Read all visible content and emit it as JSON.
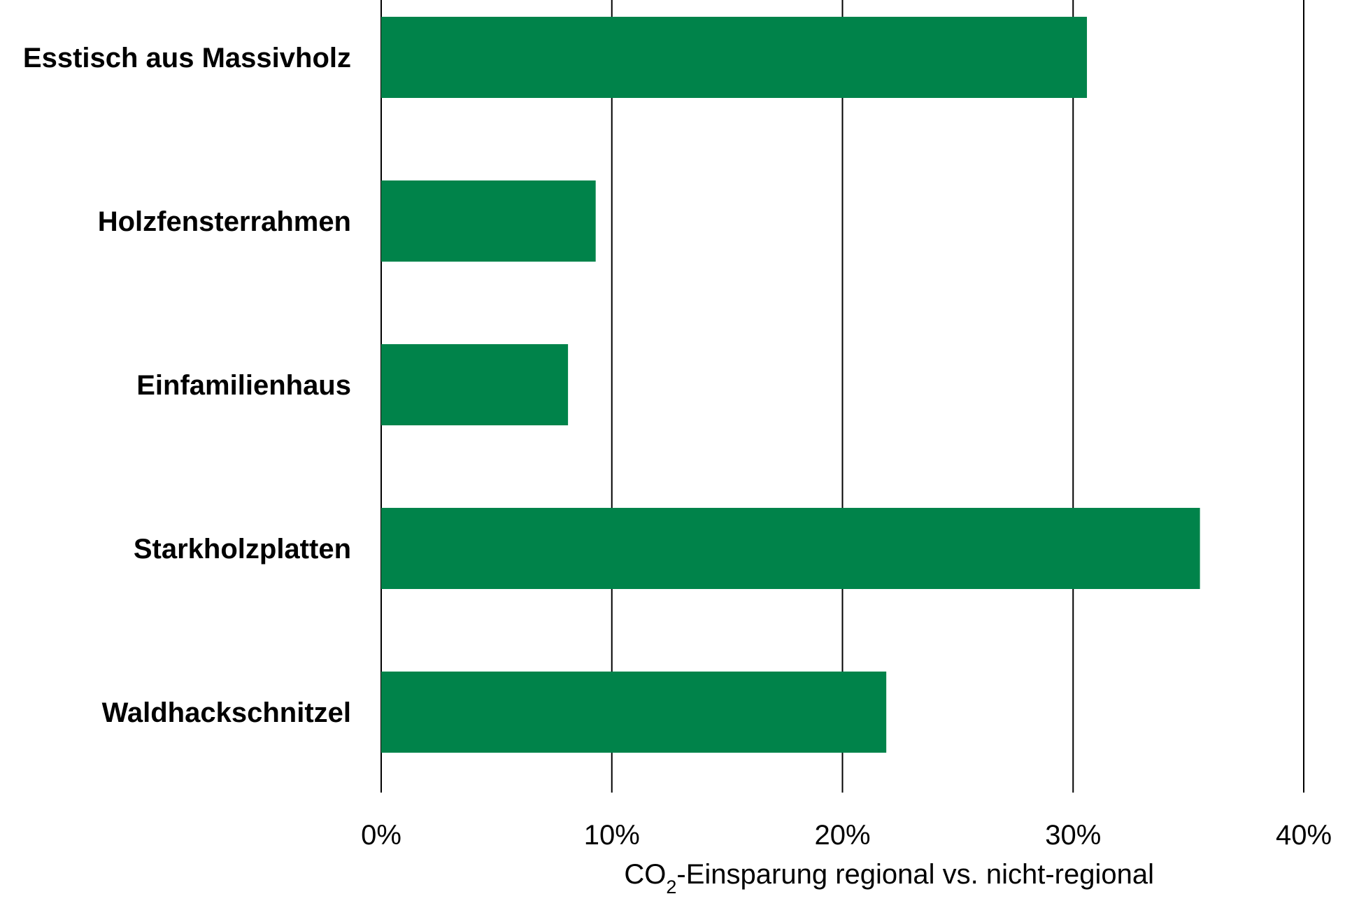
{
  "chart_data": {
    "type": "bar",
    "orientation": "horizontal",
    "categories": [
      "Esstisch aus Massivholz",
      "Holzfensterrahmen",
      "Einfamilienhaus",
      "Starkholzplatten",
      "Waldhackschnitzel"
    ],
    "values": [
      30.6,
      9.3,
      8.1,
      35.5,
      21.9
    ],
    "unit": "%",
    "xlim": [
      0,
      40
    ],
    "xticks": [
      "0%",
      "10%",
      "20%",
      "30%",
      "40%"
    ],
    "xlabel": {
      "prefix": "CO",
      "subscript": "2",
      "suffix": "-Einsparung regional vs. nicht-regional"
    },
    "grid": "vertical",
    "legend": "none",
    "bar_color": "#00834A"
  }
}
